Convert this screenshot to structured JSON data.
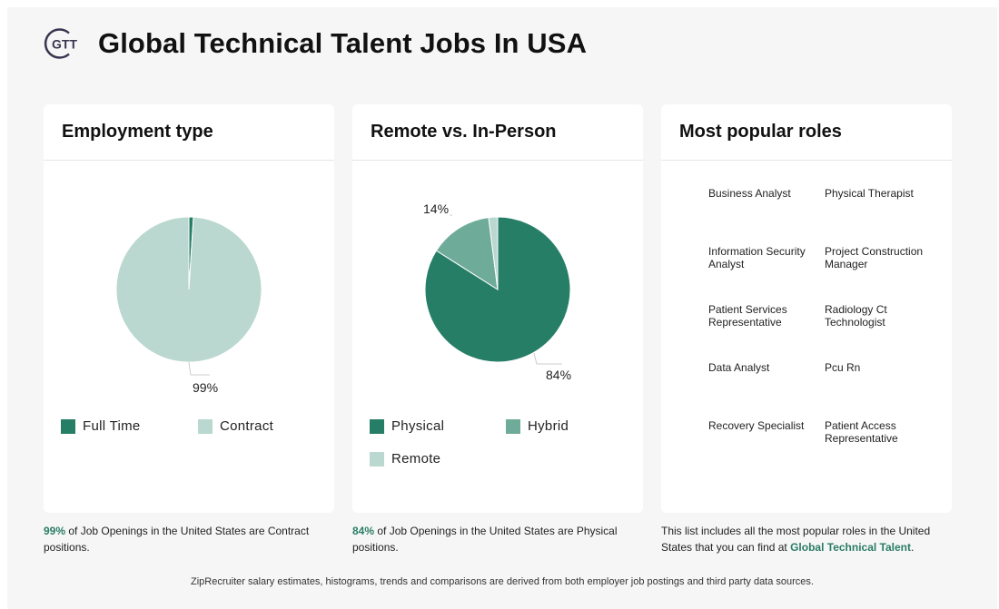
{
  "header": {
    "logo_text": "GTT",
    "title": "Global Technical Talent Jobs In USA"
  },
  "employment": {
    "heading": "Employment type",
    "chart_data": {
      "type": "pie",
      "slices": [
        {
          "label": "Full Time",
          "value": 1,
          "color": "#267e67"
        },
        {
          "label": "Contract",
          "value": 99,
          "color": "#bad8cf"
        }
      ],
      "data_labels": [
        "99%"
      ]
    },
    "pct_label": "99%",
    "legend": [
      "Full Time",
      "Contract"
    ],
    "caption_strong": "99%",
    "caption_rest": " of Job Openings in the United States are Contract positions."
  },
  "remote": {
    "heading": "Remote vs. In-Person",
    "chart_data": {
      "type": "pie",
      "slices": [
        {
          "label": "Physical",
          "value": 84,
          "color": "#267e67"
        },
        {
          "label": "Hybrid",
          "value": 14,
          "color": "#6fab99"
        },
        {
          "label": "Remote",
          "value": 2,
          "color": "#bad8cf"
        }
      ],
      "data_labels": [
        "84%",
        "14%"
      ]
    },
    "pct_main": "84%",
    "pct_secondary": "14%",
    "legend": [
      "Physical",
      "Hybrid",
      "Remote"
    ],
    "caption_strong": "84%",
    "caption_rest": " of Job Openings in the United States are Physical positions."
  },
  "roles": {
    "heading": "Most popular roles",
    "items": [
      "Business Analyst",
      "Physical Therapist",
      "Information Security Analyst",
      "Project Construction Manager",
      "Patient Services Representative",
      "Radiology Ct Technologist",
      "Data Analyst",
      "Pcu Rn",
      "Recovery Specialist",
      "Patient Access Representative"
    ],
    "caption_prefix": "This list includes all the most popular roles in the United States that you can find at ",
    "caption_link": "Global Technical Talent",
    "caption_suffix": "."
  },
  "footer": "ZipRecruiter salary estimates, histograms, trends and comparisons are derived from both employer job postings and third party data sources.",
  "colors": {
    "primary": "#267e67",
    "secondary": "#6fab99",
    "light": "#bad8cf",
    "accent_text": "#2a7d66"
  }
}
